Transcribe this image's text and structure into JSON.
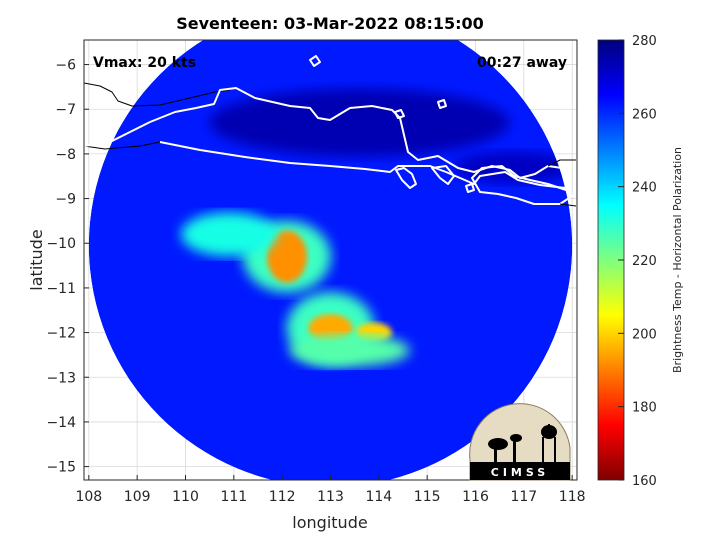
{
  "chart_data": {
    "type": "heatmap",
    "title": "Seventeen: 03-Mar-2022 08:15:00",
    "xlabel": "longitude",
    "ylabel": "latitude",
    "xlim": [
      107.9,
      118.1
    ],
    "ylim": [
      -15.3,
      -5.45
    ],
    "x_ticks": [
      108,
      109,
      110,
      111,
      112,
      113,
      114,
      115,
      116,
      117,
      118
    ],
    "y_ticks": [
      -6,
      -7,
      -8,
      -9,
      -10,
      -11,
      -12,
      -13,
      -14,
      -15
    ],
    "grid": true,
    "colorbar": {
      "label": "Brightness Temp - Horizontal Polarization",
      "range": [
        160,
        280
      ],
      "ticks": [
        280,
        260,
        240,
        220,
        200,
        180,
        160
      ],
      "colormap": "jet"
    },
    "annotations": {
      "vmax": "Vmax: 20 kts",
      "time_away": "00:27 away"
    },
    "swath": {
      "center_lon": 113.0,
      "center_lat": -10.05,
      "radius_deg": 5.0,
      "background_value": 262
    },
    "features": [
      {
        "name": "land-java-north",
        "lon": 113.6,
        "lat": -7.3,
        "value": 274
      },
      {
        "name": "land-madura",
        "lon": 116.8,
        "lat": -8.3,
        "value": 272
      },
      {
        "name": "convection-north-main",
        "lon": 112.1,
        "lat": -10.3,
        "value": 192
      },
      {
        "name": "convection-north-band",
        "lon": 110.9,
        "lat": -9.8,
        "value": 232
      },
      {
        "name": "convection-south-main",
        "lon": 113.0,
        "lat": -11.9,
        "value": 195
      },
      {
        "name": "convection-south-east",
        "lon": 113.9,
        "lat": -12.0,
        "value": 200
      },
      {
        "name": "convection-south-band",
        "lon": 113.4,
        "lat": -12.4,
        "value": 225
      }
    ]
  },
  "logo": {
    "text": "CIMSS"
  },
  "colors": {
    "plot_background": "#ffffff",
    "coastline_land": "#ffffff",
    "coastline_sea": "#000000"
  }
}
